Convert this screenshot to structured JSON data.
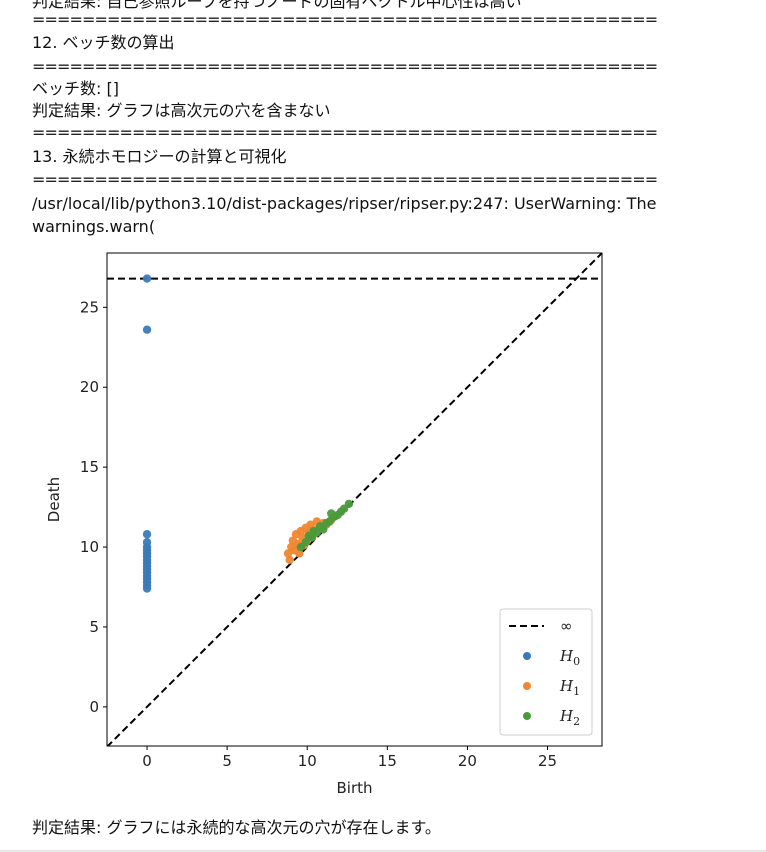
{
  "output": {
    "cut_line": "判定結果: 自己参照ループを持つノードの固有ベクトル中心性は高い",
    "separator": "==================================================",
    "section12_title": "12. ベッチ数の算出",
    "betti_line": "ベッチ数: []",
    "betti_result": "判定結果: グラフは高次元の穴を含まない",
    "section13_title": "13. 永続ホモロジーの計算と可視化",
    "warning_line": "/usr/local/lib/python3.10/dist-packages/ripser/ripser.py:247: UserWarning: The",
    "warning_line2": "  warnings.warn(",
    "final_result": "判定結果: グラフには永続的な高次元の穴が存在します。"
  },
  "chart_data": {
    "type": "scatter",
    "xlabel": "Birth",
    "ylabel": "Death",
    "xlim": [
      -2.5,
      28.4
    ],
    "ylim": [
      -2.45,
      28.4
    ],
    "xticks": [
      0,
      5,
      10,
      15,
      20,
      25
    ],
    "yticks": [
      0,
      5,
      10,
      15,
      20,
      25
    ],
    "infinity_value": 26.8,
    "diagonal": true,
    "legend_placement": "bottom-right",
    "legend": [
      {
        "label": "∞",
        "style": "dashed-line",
        "color": "#000000"
      },
      {
        "label": "H0",
        "sub": "0",
        "color": "#3b7ab8"
      },
      {
        "label": "H1",
        "sub": "1",
        "color": "#f0862f"
      },
      {
        "label": "H2",
        "sub": "2",
        "color": "#4a9a3c"
      }
    ],
    "series": [
      {
        "name": "H0",
        "color": "#3b7ab8",
        "points": [
          [
            0,
            26.8
          ],
          [
            0,
            23.6
          ],
          [
            0,
            10.8
          ],
          [
            0,
            10.3
          ],
          [
            0,
            10.0
          ],
          [
            0,
            9.8
          ],
          [
            0,
            9.6
          ],
          [
            0,
            9.4
          ],
          [
            0,
            9.2
          ],
          [
            0,
            9.0
          ],
          [
            0,
            8.8
          ],
          [
            0,
            8.6
          ],
          [
            0,
            8.4
          ],
          [
            0,
            8.2
          ],
          [
            0,
            8.0
          ],
          [
            0,
            7.8
          ],
          [
            0,
            7.6
          ],
          [
            0,
            7.4
          ]
        ]
      },
      {
        "name": "H1",
        "color": "#f0862f",
        "points": [
          [
            8.8,
            9.6
          ],
          [
            8.9,
            9.2
          ],
          [
            9.0,
            10.0
          ],
          [
            9.1,
            10.4
          ],
          [
            9.2,
            9.8
          ],
          [
            9.3,
            10.8
          ],
          [
            9.4,
            10.2
          ],
          [
            9.5,
            9.6
          ],
          [
            9.6,
            11.0
          ],
          [
            9.7,
            10.6
          ],
          [
            9.8,
            10.1
          ],
          [
            9.9,
            11.2
          ],
          [
            10.0,
            10.4
          ],
          [
            10.1,
            10.9
          ],
          [
            10.2,
            11.4
          ],
          [
            10.3,
            10.6
          ],
          [
            10.4,
            11.1
          ],
          [
            10.6,
            11.6
          ],
          [
            10.8,
            11.2
          ],
          [
            11.0,
            11.5
          ],
          [
            11.2,
            11.4
          ],
          [
            11.5,
            11.7
          ]
        ]
      },
      {
        "name": "H2",
        "color": "#4a9a3c",
        "points": [
          [
            9.6,
            10.0
          ],
          [
            9.9,
            10.3
          ],
          [
            10.1,
            10.7
          ],
          [
            10.3,
            10.6
          ],
          [
            10.4,
            11.0
          ],
          [
            10.6,
            10.9
          ],
          [
            10.8,
            11.3
          ],
          [
            11.0,
            11.1
          ],
          [
            11.2,
            11.5
          ],
          [
            11.4,
            11.6
          ],
          [
            11.5,
            12.1
          ],
          [
            11.7,
            11.9
          ],
          [
            11.9,
            12.0
          ],
          [
            12.1,
            12.2
          ],
          [
            12.3,
            12.4
          ],
          [
            12.6,
            12.7
          ]
        ]
      }
    ]
  }
}
